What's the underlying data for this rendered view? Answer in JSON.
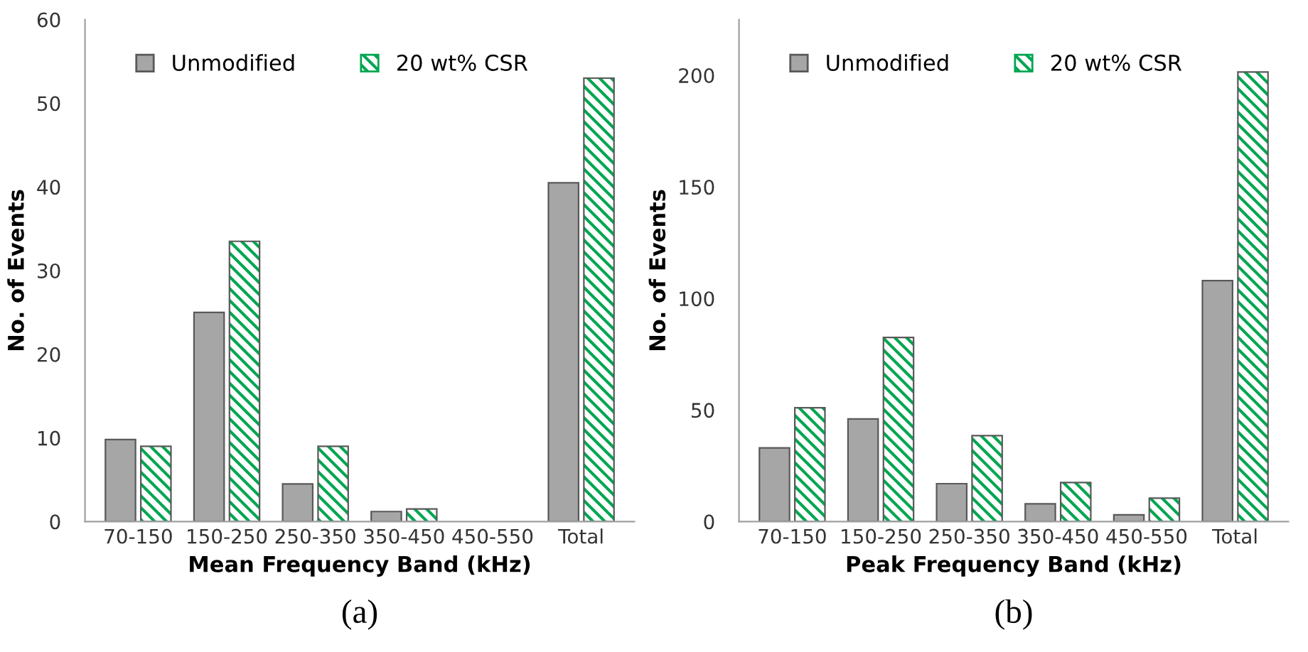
{
  "chart_data": [
    {
      "type": "bar",
      "categories": [
        "70-150",
        "150-250",
        "250-350",
        "350-450",
        "450-550",
        "Total"
      ],
      "xlabel": "Mean Frequency Band (kHz)",
      "ylabel": "No. of Events",
      "ylim": [
        0,
        60
      ],
      "yticks": [
        0,
        10,
        20,
        30,
        40,
        50,
        60
      ],
      "legend": "top",
      "grid": false,
      "annotations": [
        "(a)"
      ],
      "series": [
        {
          "name": "Unmodified",
          "color": "#a6a6a6",
          "values": [
            9.8,
            25,
            4.5,
            1.2,
            null,
            40.5
          ]
        },
        {
          "name": "20 wt% CSR",
          "color": "#00a651",
          "values": [
            9,
            33.5,
            9,
            1.5,
            null,
            53
          ]
        }
      ]
    },
    {
      "type": "bar",
      "categories": [
        "70-150",
        "150-250",
        "250-350",
        "350-450",
        "450-550",
        "Total"
      ],
      "xlabel": "Peak Frequency Band (kHz)",
      "ylabel": "No. of Events",
      "ylim": [
        0,
        225
      ],
      "yticks": [
        0,
        50,
        100,
        150,
        200
      ],
      "legend": "top",
      "grid": false,
      "annotations": [
        "(b)"
      ],
      "series": [
        {
          "name": "Unmodified",
          "color": "#a6a6a6",
          "values": [
            33,
            46,
            17,
            8,
            3,
            108
          ]
        },
        {
          "name": "20 wt% CSR",
          "color": "#00a651",
          "values": [
            51,
            82.5,
            38.5,
            17.5,
            10.5,
            201.5
          ]
        }
      ]
    }
  ]
}
